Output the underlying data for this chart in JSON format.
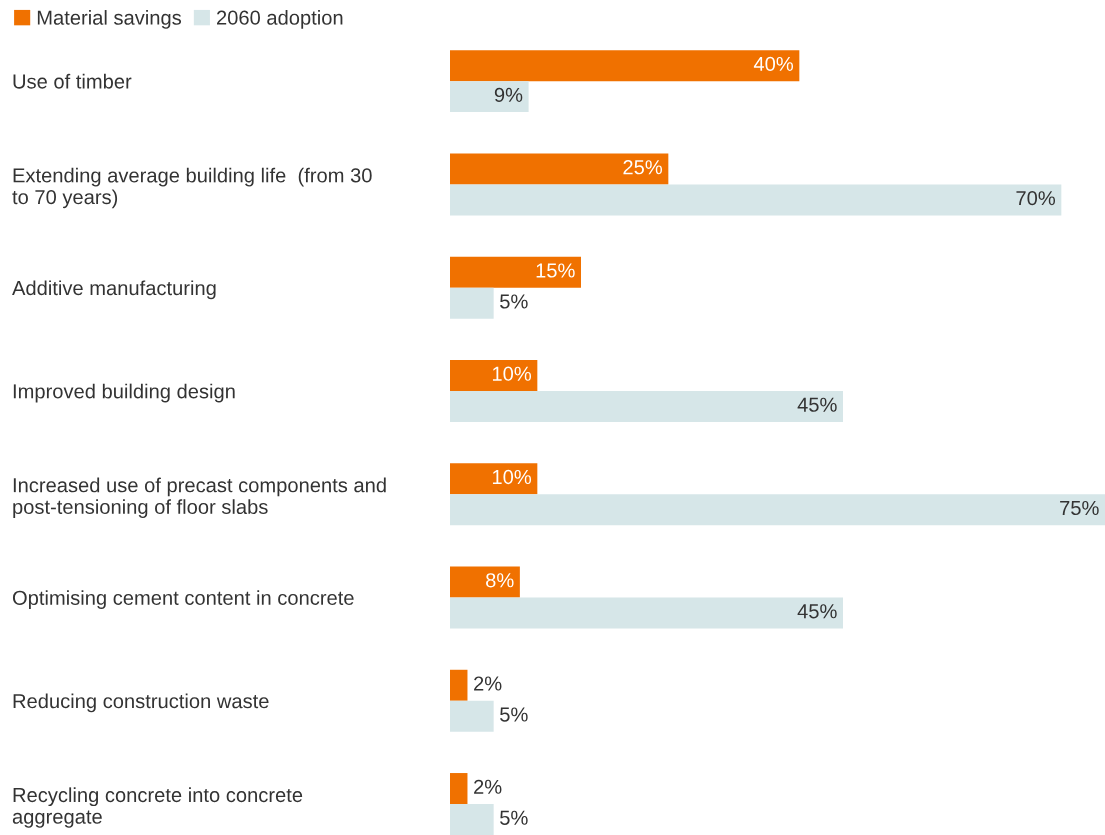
{
  "chart_data": {
    "type": "bar",
    "orientation": "horizontal",
    "legend": "top left",
    "grid": false,
    "categories": [
      "Use of timber",
      "Extending average building life  (from 30\nto 70 years)",
      "Additive manufacturing",
      "Improved building design",
      "Increased use of precast components and\npost-tensioning of floor slabs",
      "Optimising cement content in concrete",
      "Reducing construction waste",
      "Recycling concrete into concrete\naggregate"
    ],
    "series": [
      {
        "name": "Material savings",
        "color": "#f07100",
        "values": [
          40,
          25,
          15,
          10,
          10,
          8,
          2,
          2
        ],
        "value_labels": [
          "40%",
          "25%",
          "15%",
          "10%",
          "10%",
          "8%",
          "2%",
          "2%"
        ]
      },
      {
        "name": "2060 adoption",
        "color": "#d6e6e8",
        "values": [
          9,
          70,
          5,
          45,
          75,
          45,
          5,
          5
        ],
        "value_labels": [
          "9%",
          "70%",
          "5%",
          "45%",
          "75%",
          "45%",
          "5%",
          "5%"
        ]
      }
    ]
  }
}
